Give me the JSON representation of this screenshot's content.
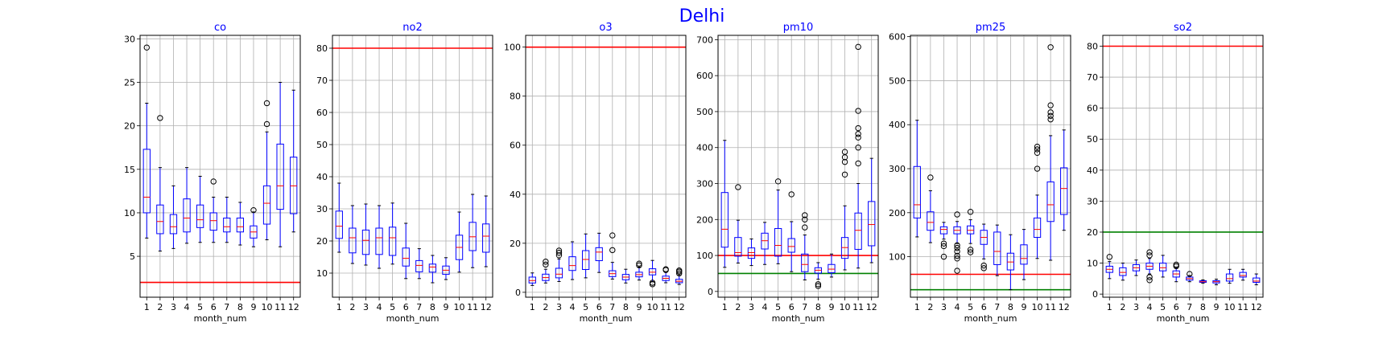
{
  "figure": {
    "title": "Delhi",
    "title_color": "#0000ff",
    "panel_title_color": "#0000ff",
    "box_color": "#0000ff",
    "whisker_color": "#0000ff",
    "median_color": "#ff0000",
    "grid_color": "#b0b0b0"
  },
  "chart_data": [
    {
      "type": "box",
      "title": "co",
      "xlabel": "month_num",
      "categories": [
        "1",
        "2",
        "3",
        "4",
        "5",
        "6",
        "7",
        "8",
        "9",
        "10",
        "11",
        "12"
      ],
      "ylim": [
        0.3,
        30.4
      ],
      "yticks": [
        5,
        10,
        15,
        20,
        25,
        30
      ],
      "grid": true,
      "boxes": [
        {
          "whislo": 7.1,
          "q1": 10.0,
          "med": 11.8,
          "q3": 17.3,
          "whishi": 22.6,
          "fliers": [
            29.0
          ]
        },
        {
          "whislo": 5.6,
          "q1": 7.6,
          "med": 9.0,
          "q3": 10.9,
          "whishi": 15.2,
          "fliers": [
            20.9
          ]
        },
        {
          "whislo": 5.9,
          "q1": 7.6,
          "med": 8.4,
          "q3": 9.8,
          "whishi": 13.1,
          "fliers": []
        },
        {
          "whislo": 6.5,
          "q1": 7.8,
          "med": 9.4,
          "q3": 11.6,
          "whishi": 15.2,
          "fliers": []
        },
        {
          "whislo": 6.6,
          "q1": 8.3,
          "med": 9.2,
          "q3": 10.9,
          "whishi": 14.2,
          "fliers": []
        },
        {
          "whislo": 6.6,
          "q1": 8.0,
          "med": 9.1,
          "q3": 10.0,
          "whishi": 11.8,
          "fliers": [
            13.6
          ]
        },
        {
          "whislo": 6.6,
          "q1": 7.8,
          "med": 8.4,
          "q3": 9.4,
          "whishi": 11.8,
          "fliers": []
        },
        {
          "whislo": 6.3,
          "q1": 7.8,
          "med": 8.4,
          "q3": 9.4,
          "whishi": 11.2,
          "fliers": []
        },
        {
          "whislo": 6.1,
          "q1": 7.1,
          "med": 7.8,
          "q3": 8.5,
          "whishi": 10.1,
          "fliers": [
            10.3
          ]
        },
        {
          "whislo": 6.9,
          "q1": 8.7,
          "med": 11.1,
          "q3": 13.1,
          "whishi": 19.3,
          "fliers": [
            20.2,
            22.6
          ]
        },
        {
          "whislo": 6.1,
          "q1": 10.4,
          "med": 13.1,
          "q3": 17.9,
          "whishi": 25.0,
          "fliers": []
        },
        {
          "whislo": 7.8,
          "q1": 9.9,
          "med": 13.1,
          "q3": 16.4,
          "whishi": 24.1,
          "fliers": []
        }
      ],
      "hlines": [
        {
          "y": 2.0,
          "color": "#ff0000"
        }
      ]
    },
    {
      "type": "box",
      "title": "no2",
      "xlabel": "month_num",
      "categories": [
        "1",
        "2",
        "3",
        "4",
        "5",
        "6",
        "7",
        "8",
        "9",
        "10",
        "11",
        "12"
      ],
      "ylim": [
        2.5,
        84
      ],
      "yticks": [
        10,
        20,
        30,
        40,
        50,
        60,
        70,
        80
      ],
      "grid": true,
      "boxes": [
        {
          "whislo": 16.5,
          "q1": 20.8,
          "med": 24.6,
          "q3": 29.3,
          "whishi": 38.0,
          "fliers": []
        },
        {
          "whislo": 13.0,
          "q1": 16.3,
          "med": 21.0,
          "q3": 24.0,
          "whishi": 31.0,
          "fliers": []
        },
        {
          "whislo": 12.5,
          "q1": 15.8,
          "med": 20.2,
          "q3": 23.4,
          "whishi": 31.5,
          "fliers": []
        },
        {
          "whislo": 11.5,
          "q1": 15.8,
          "med": 21.0,
          "q3": 24.0,
          "whishi": 31.0,
          "fliers": []
        },
        {
          "whislo": 12.8,
          "q1": 15.5,
          "med": 21.0,
          "q3": 24.3,
          "whishi": 31.8,
          "fliers": []
        },
        {
          "whislo": 8.3,
          "q1": 12.2,
          "med": 14.6,
          "q3": 17.8,
          "whishi": 25.5,
          "fliers": []
        },
        {
          "whislo": 8.3,
          "q1": 10.4,
          "med": 12.4,
          "q3": 13.9,
          "whishi": 17.6,
          "fliers": []
        },
        {
          "whislo": 7.0,
          "q1": 10.3,
          "med": 11.9,
          "q3": 12.8,
          "whishi": 15.5,
          "fliers": []
        },
        {
          "whislo": 8.0,
          "q1": 9.6,
          "med": 10.9,
          "q3": 12.2,
          "whishi": 14.8,
          "fliers": []
        },
        {
          "whislo": 10.3,
          "q1": 14.2,
          "med": 18.0,
          "q3": 21.8,
          "whishi": 29.0,
          "fliers": []
        },
        {
          "whislo": 11.7,
          "q1": 17.0,
          "med": 21.3,
          "q3": 25.8,
          "whishi": 34.5,
          "fliers": []
        },
        {
          "whislo": 12.0,
          "q1": 16.5,
          "med": 21.5,
          "q3": 25.3,
          "whishi": 34.0,
          "fliers": []
        }
      ],
      "hlines": [
        {
          "y": 80,
          "color": "#ff0000"
        }
      ]
    },
    {
      "type": "box",
      "title": "o3",
      "xlabel": "month_num",
      "categories": [
        "1",
        "2",
        "3",
        "4",
        "5",
        "6",
        "7",
        "8",
        "9",
        "10",
        "11",
        "12"
      ],
      "ylim": [
        -2,
        104.8
      ],
      "yticks": [
        0,
        20,
        40,
        60,
        80,
        100
      ],
      "grid": true,
      "boxes": [
        {
          "whislo": 2.8,
          "q1": 3.8,
          "med": 4.8,
          "q3": 6.2,
          "whishi": 7.9,
          "fliers": []
        },
        {
          "whislo": 3.8,
          "q1": 4.8,
          "med": 6.0,
          "q3": 7.4,
          "whishi": 9.4,
          "fliers": [
            11.3,
            12.5
          ]
        },
        {
          "whislo": 4.4,
          "q1": 5.9,
          "med": 7.4,
          "q3": 9.8,
          "whishi": 13.6,
          "fliers": [
            15.1,
            16.1,
            17.0
          ]
        },
        {
          "whislo": 5.2,
          "q1": 8.9,
          "med": 10.9,
          "q3": 14.5,
          "whishi": 20.6,
          "fliers": []
        },
        {
          "whislo": 5.9,
          "q1": 9.3,
          "med": 13.4,
          "q3": 17.0,
          "whishi": 23.8,
          "fliers": []
        },
        {
          "whislo": 8.1,
          "q1": 12.9,
          "med": 16.4,
          "q3": 18.2,
          "whishi": 24.1,
          "fliers": []
        },
        {
          "whislo": 5.4,
          "q1": 6.4,
          "med": 7.6,
          "q3": 8.8,
          "whishi": 12.2,
          "fliers": [
            17.2,
            23.2
          ]
        },
        {
          "whislo": 3.8,
          "q1": 5.1,
          "med": 6.2,
          "q3": 7.3,
          "whishi": 9.4,
          "fliers": []
        },
        {
          "whislo": 5.0,
          "q1": 6.3,
          "med": 7.2,
          "q3": 8.2,
          "whishi": 10.3,
          "fliers": [
            11.0,
            11.7
          ]
        },
        {
          "whislo": 4.4,
          "q1": 7.1,
          "med": 8.2,
          "q3": 9.6,
          "whishi": 13.0,
          "fliers": [
            3.3,
            3.9
          ]
        },
        {
          "whislo": 3.9,
          "q1": 4.8,
          "med": 5.7,
          "q3": 6.6,
          "whishi": 8.2,
          "fliers": [
            9.1,
            9.4
          ]
        },
        {
          "whislo": 3.2,
          "q1": 3.9,
          "med": 4.5,
          "q3": 5.3,
          "whishi": 6.9,
          "fliers": [
            7.7,
            8.4,
            8.9
          ]
        }
      ],
      "hlines": [
        {
          "y": 100,
          "color": "#ff0000"
        }
      ]
    },
    {
      "type": "box",
      "title": "pm10",
      "xlabel": "month_num",
      "categories": [
        "1",
        "2",
        "3",
        "4",
        "5",
        "6",
        "7",
        "8",
        "9",
        "10",
        "11",
        "12"
      ],
      "ylim": [
        -16,
        712
      ],
      "yticks": [
        0,
        100,
        200,
        300,
        400,
        500,
        600,
        700
      ],
      "grid": true,
      "boxes": [
        {
          "whislo": 67,
          "q1": 123,
          "med": 173,
          "q3": 275,
          "whishi": 420,
          "fliers": []
        },
        {
          "whislo": 79,
          "q1": 98,
          "med": 108,
          "q3": 150,
          "whishi": 198,
          "fliers": [
            290
          ]
        },
        {
          "whislo": 72,
          "q1": 92,
          "med": 108,
          "q3": 121,
          "whishi": 146,
          "fliers": []
        },
        {
          "whislo": 75,
          "q1": 118,
          "med": 141,
          "q3": 162,
          "whishi": 192,
          "fliers": []
        },
        {
          "whislo": 77,
          "q1": 98,
          "med": 128,
          "q3": 175,
          "whishi": 282,
          "fliers": [
            306
          ]
        },
        {
          "whislo": 55,
          "q1": 109,
          "med": 125,
          "q3": 147,
          "whishi": 194,
          "fliers": [
            270
          ]
        },
        {
          "whislo": 32,
          "q1": 55,
          "med": 75,
          "q3": 104,
          "whishi": 157,
          "fliers": [
            178,
            200,
            212
          ]
        },
        {
          "whislo": 34,
          "q1": 51,
          "med": 59,
          "q3": 66,
          "whishi": 80,
          "fliers": [
            15,
            20
          ]
        },
        {
          "whislo": 40,
          "q1": 52,
          "med": 62,
          "q3": 75,
          "whishi": 104,
          "fliers": []
        },
        {
          "whislo": 60,
          "q1": 92,
          "med": 122,
          "q3": 150,
          "whishi": 238,
          "fliers": [
            325,
            360,
            373,
            388
          ]
        },
        {
          "whislo": 65,
          "q1": 117,
          "med": 170,
          "q3": 218,
          "whishi": 300,
          "fliers": [
            356,
            400,
            428,
            438,
            454,
            502,
            680
          ]
        },
        {
          "whislo": 80,
          "q1": 127,
          "med": 186,
          "q3": 250,
          "whishi": 370,
          "fliers": []
        }
      ],
      "hlines": [
        {
          "y": 100,
          "color": "#ff0000"
        },
        {
          "y": 50,
          "color": "#008000"
        }
      ]
    },
    {
      "type": "box",
      "title": "pm25",
      "xlabel": "month_num",
      "categories": [
        "1",
        "2",
        "3",
        "4",
        "5",
        "6",
        "7",
        "8",
        "9",
        "10",
        "11",
        "12"
      ],
      "ylim": [
        8,
        603
      ],
      "yticks": [
        100,
        200,
        300,
        400,
        500,
        600
      ],
      "grid": true,
      "boxes": [
        {
          "whislo": 145,
          "q1": 188,
          "med": 218,
          "q3": 305,
          "whishi": 410,
          "fliers": []
        },
        {
          "whislo": 132,
          "q1": 160,
          "med": 178,
          "q3": 202,
          "whishi": 250,
          "fliers": [
            280
          ]
        },
        {
          "whislo": 140,
          "q1": 152,
          "med": 162,
          "q3": 168,
          "whishi": 178,
          "fliers": [
            100,
            124,
            130
          ]
        },
        {
          "whislo": 130,
          "q1": 152,
          "med": 160,
          "q3": 168,
          "whishi": 180,
          "fliers": [
            68,
            96,
            102,
            112,
            120,
            126,
            196
          ]
        },
        {
          "whislo": 130,
          "q1": 152,
          "med": 160,
          "q3": 170,
          "whishi": 184,
          "fliers": [
            110,
            116,
            202
          ]
        },
        {
          "whislo": 95,
          "q1": 128,
          "med": 144,
          "q3": 160,
          "whishi": 174,
          "fliers": [
            74,
            80
          ]
        },
        {
          "whislo": 57,
          "q1": 82,
          "med": 112,
          "q3": 156,
          "whishi": 172,
          "fliers": []
        },
        {
          "whislo": 25,
          "q1": 70,
          "med": 88,
          "q3": 108,
          "whishi": 150,
          "fliers": []
        },
        {
          "whislo": 48,
          "q1": 83,
          "med": 96,
          "q3": 127,
          "whishi": 162,
          "fliers": []
        },
        {
          "whislo": 96,
          "q1": 144,
          "med": 162,
          "q3": 188,
          "whishi": 240,
          "fliers": [
            300,
            336,
            344,
            350
          ]
        },
        {
          "whislo": 92,
          "q1": 180,
          "med": 218,
          "q3": 270,
          "whishi": 375,
          "fliers": [
            412,
            420,
            428,
            444,
            576
          ]
        },
        {
          "whislo": 160,
          "q1": 196,
          "med": 255,
          "q3": 302,
          "whishi": 388,
          "fliers": []
        }
      ],
      "hlines": [
        {
          "y": 60,
          "color": "#ff0000"
        },
        {
          "y": 25,
          "color": "#008000"
        }
      ]
    },
    {
      "type": "box",
      "title": "so2",
      "xlabel": "month_num",
      "categories": [
        "1",
        "2",
        "3",
        "4",
        "5",
        "6",
        "7",
        "8",
        "9",
        "10",
        "11",
        "12"
      ],
      "ylim": [
        -1,
        83.5
      ],
      "yticks": [
        0,
        10,
        20,
        30,
        40,
        50,
        60,
        70,
        80
      ],
      "grid": true,
      "boxes": [
        {
          "whislo": 5.0,
          "q1": 7.0,
          "med": 8.0,
          "q3": 9.0,
          "whishi": 10.5,
          "fliers": [
            12.0
          ]
        },
        {
          "whislo": 4.5,
          "q1": 6.0,
          "med": 7.0,
          "q3": 8.5,
          "whishi": 10.0,
          "fliers": []
        },
        {
          "whislo": 6.0,
          "q1": 7.5,
          "med": 8.5,
          "q3": 9.5,
          "whishi": 11.0,
          "fliers": []
        },
        {
          "whislo": 6.5,
          "q1": 8.0,
          "med": 9.0,
          "q3": 10.0,
          "whishi": 11.5,
          "fliers": [
            4.5,
            5.5,
            12.5,
            13.5
          ]
        },
        {
          "whislo": 5.5,
          "q1": 7.5,
          "med": 8.5,
          "q3": 10.0,
          "whishi": 12.5,
          "fliers": []
        },
        {
          "whislo": 4.0,
          "q1": 5.5,
          "med": 6.5,
          "q3": 7.5,
          "whishi": 8.5,
          "fliers": [
            9.0,
            9.5
          ]
        },
        {
          "whislo": 4.0,
          "q1": 4.5,
          "med": 5.0,
          "q3": 5.5,
          "whishi": 6.0,
          "fliers": [
            6.5
          ]
        },
        {
          "whislo": 3.5,
          "q1": 3.8,
          "med": 4.0,
          "q3": 4.3,
          "whishi": 4.6,
          "fliers": []
        },
        {
          "whislo": 3.0,
          "q1": 3.6,
          "med": 4.0,
          "q3": 4.3,
          "whishi": 4.8,
          "fliers": []
        },
        {
          "whislo": 3.5,
          "q1": 4.2,
          "med": 5.0,
          "q3": 6.5,
          "whishi": 8.0,
          "fliers": []
        },
        {
          "whislo": 4.5,
          "q1": 5.5,
          "med": 6.0,
          "q3": 7.0,
          "whishi": 8.0,
          "fliers": []
        },
        {
          "whislo": 3.0,
          "q1": 3.8,
          "med": 4.2,
          "q3": 5.2,
          "whishi": 6.5,
          "fliers": []
        }
      ],
      "hlines": [
        {
          "y": 80,
          "color": "#ff0000"
        },
        {
          "y": 20,
          "color": "#008000"
        }
      ]
    }
  ]
}
